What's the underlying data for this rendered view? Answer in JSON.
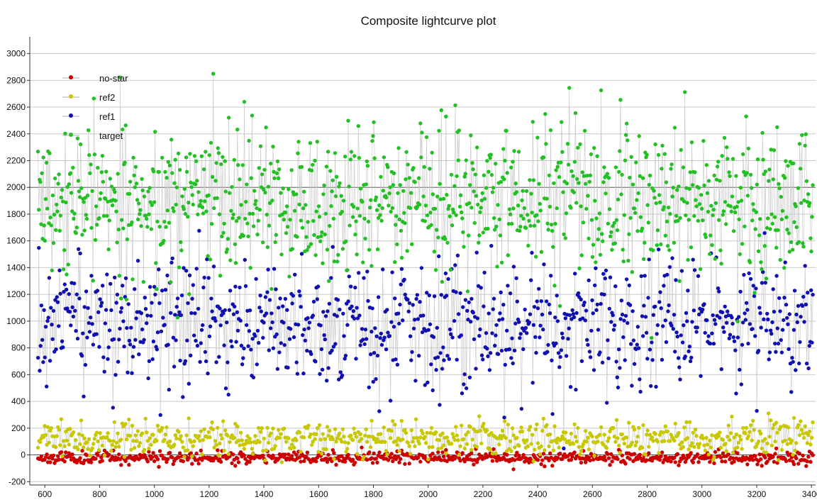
{
  "chart_data": {
    "type": "scatter",
    "title": "Composite lightcurve plot",
    "xlabel": "",
    "ylabel": "",
    "xlim": [
      545,
      3415
    ],
    "ylim": [
      -225,
      3125
    ],
    "x_ticks": [
      600,
      800,
      1000,
      1200,
      1400,
      1600,
      1800,
      2000,
      2200,
      2400,
      2600,
      2800,
      3000,
      3200,
      3400
    ],
    "y_ticks": [
      -200,
      0,
      200,
      400,
      600,
      800,
      1000,
      1200,
      1400,
      1600,
      1800,
      2000,
      2200,
      2400,
      2600,
      2800,
      3000
    ],
    "grid": "horizontal",
    "connecting_line_color": "#c8c8c8",
    "legend_position": "top-left",
    "series": [
      {
        "name": "no-star",
        "color": "#cc0000",
        "x_range": [
          575,
          3405
        ],
        "baseline": -20,
        "spread": 22,
        "points": 700,
        "seed": 11
      },
      {
        "name": "ref2",
        "color": "#c8c800",
        "x_range": [
          575,
          3405
        ],
        "baseline": 120,
        "spread": 60,
        "points": 700,
        "seed": 23
      },
      {
        "name": "ref1",
        "color": "#1010b0",
        "x_range": [
          575,
          3405
        ],
        "baseline": 980,
        "spread": 230,
        "points": 900,
        "seed": 37
      },
      {
        "name": "target",
        "color": "#22c022",
        "x_range": [
          575,
          3405
        ],
        "baseline": 1900,
        "spread": 260,
        "points": 1000,
        "seed": 53
      }
    ]
  }
}
